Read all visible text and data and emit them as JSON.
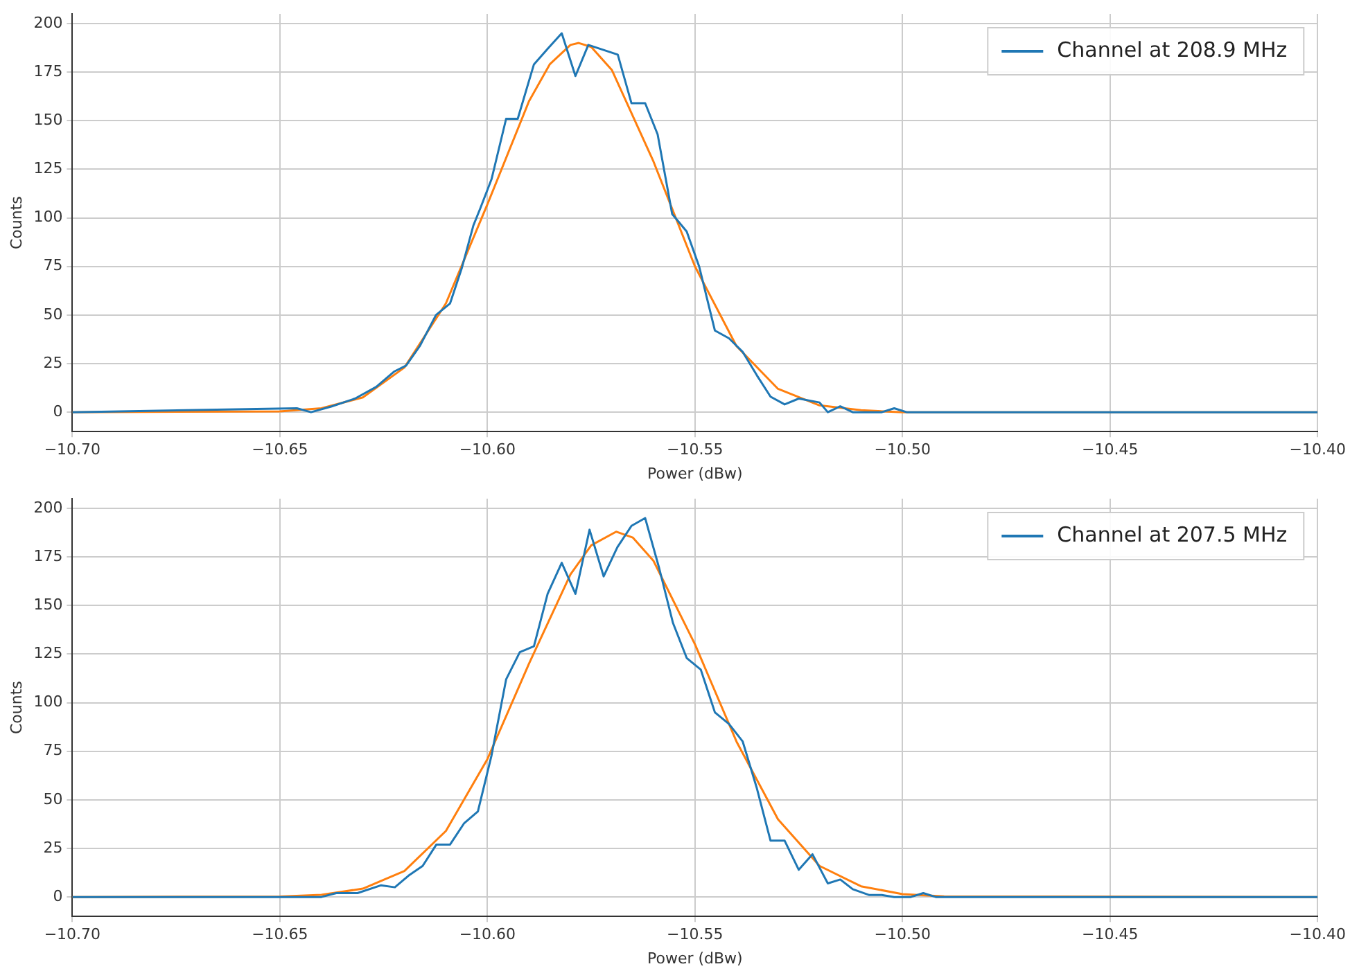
{
  "chart_data": [
    {
      "type": "line",
      "xlabel": "Power (dBw)",
      "ylabel": "Counts",
      "xlim": [
        -10.7,
        -10.4
      ],
      "ylim": [
        -10,
        205
      ],
      "xticks": [
        {
          "value": -10.7,
          "label": "−10.70"
        },
        {
          "value": -10.65,
          "label": "−10.65"
        },
        {
          "value": -10.6,
          "label": "−10.60"
        },
        {
          "value": -10.55,
          "label": "−10.55"
        },
        {
          "value": -10.5,
          "label": "−10.50"
        },
        {
          "value": -10.45,
          "label": "−10.45"
        },
        {
          "value": -10.4,
          "label": "−10.40"
        }
      ],
      "yticks": [
        0,
        25,
        50,
        75,
        100,
        125,
        150,
        175,
        200
      ],
      "grid": true,
      "legend": "top right",
      "marker": "none",
      "line_style": "solid",
      "series": [
        {
          "name": "Channel at 208.9 MHz",
          "color": "#1f77b4",
          "x": [
            -10.7,
            -10.6459,
            -10.6425,
            -10.6375,
            -10.6319,
            -10.6268,
            -10.6224,
            -10.6196,
            -10.6163,
            -10.6124,
            -10.609,
            -10.6062,
            -10.6034,
            -10.6017,
            -10.599,
            -10.5955,
            -10.5927,
            -10.5888,
            -10.5855,
            -10.5821,
            -10.5788,
            -10.5757,
            -10.5686,
            -10.5653,
            -10.562,
            -10.559,
            -10.5555,
            -10.552,
            -10.549,
            -10.5452,
            -10.5418,
            -10.5385,
            -10.5351,
            -10.5318,
            -10.5284,
            -10.525,
            -10.52,
            -10.518,
            -10.515,
            -10.512,
            -10.505,
            -10.502,
            -10.499,
            -10.4
          ],
          "values": [
            0,
            2,
            0,
            3,
            7,
            13,
            21,
            24,
            34,
            50,
            56,
            74,
            96,
            105,
            120,
            151,
            151,
            179,
            187,
            195,
            173,
            189,
            184,
            159,
            159,
            143,
            102,
            93,
            75,
            42,
            38,
            31,
            19,
            8,
            4,
            7,
            5,
            0,
            3,
            0,
            0,
            2,
            0,
            0
          ]
        },
        {
          "color": "#ff7f0e",
          "x": [
            -10.7,
            -10.65,
            -10.64,
            -10.63,
            -10.62,
            -10.61,
            -10.6,
            -10.59,
            -10.585,
            -10.58,
            -10.578,
            -10.575,
            -10.57,
            -10.56,
            -10.55,
            -10.54,
            -10.53,
            -10.52,
            -10.51,
            -10.5,
            -10.4
          ],
          "values": [
            0,
            0.4,
            2,
            7.6,
            23,
            56,
            107,
            160,
            179,
            189,
            190,
            188,
            176,
            129,
            75,
            34,
            12,
            3.5,
            1,
            0,
            0
          ]
        }
      ]
    },
    {
      "type": "line",
      "xlabel": "Power (dBw)",
      "ylabel": "Counts",
      "xlim": [
        -10.7,
        -10.4
      ],
      "ylim": [
        -10,
        205
      ],
      "xticks": [
        {
          "value": -10.7,
          "label": "−10.70"
        },
        {
          "value": -10.65,
          "label": "−10.65"
        },
        {
          "value": -10.6,
          "label": "−10.60"
        },
        {
          "value": -10.55,
          "label": "−10.55"
        },
        {
          "value": -10.5,
          "label": "−10.50"
        },
        {
          "value": -10.45,
          "label": "−10.45"
        },
        {
          "value": -10.4,
          "label": "−10.40"
        }
      ],
      "yticks": [
        0,
        25,
        50,
        75,
        100,
        125,
        150,
        175,
        200
      ],
      "grid": true,
      "legend": "top right",
      "marker": "none",
      "line_style": "solid",
      "series": [
        {
          "name": "Channel at 207.5 MHz",
          "color": "#1f77b4",
          "x": [
            -10.7,
            -10.64,
            -10.6364,
            -10.6313,
            -10.6257,
            -10.6223,
            -10.619,
            -10.6156,
            -10.6123,
            -10.609,
            -10.6056,
            -10.6023,
            -10.599,
            -10.5955,
            -10.5922,
            -10.5888,
            -10.5855,
            -10.5821,
            -10.5788,
            -10.5754,
            -10.572,
            -10.5687,
            -10.5653,
            -10.562,
            -10.5586,
            -10.5553,
            -10.552,
            -10.5486,
            -10.5452,
            -10.5418,
            -10.5385,
            -10.5351,
            -10.5318,
            -10.5284,
            -10.525,
            -10.5217,
            -10.518,
            -10.515,
            -10.512,
            -10.508,
            -10.505,
            -10.502,
            -10.498,
            -10.495,
            -10.492,
            -10.4
          ],
          "values": [
            0,
            0,
            2,
            2,
            6,
            5,
            11,
            16,
            27,
            27,
            38,
            44,
            73,
            112,
            126,
            129,
            156,
            172,
            156,
            189,
            165,
            180,
            191,
            195,
            169,
            141,
            123,
            117,
            95,
            89,
            80,
            56,
            29,
            29,
            14,
            22,
            7,
            9,
            4,
            1,
            1,
            0,
            0,
            2,
            0,
            0
          ]
        },
        {
          "color": "#ff7f0e",
          "x": [
            -10.7,
            -10.65,
            -10.64,
            -10.63,
            -10.62,
            -10.61,
            -10.6,
            -10.59,
            -10.58,
            -10.575,
            -10.569,
            -10.565,
            -10.56,
            -10.55,
            -10.54,
            -10.53,
            -10.52,
            -10.51,
            -10.5,
            -10.49,
            -10.4
          ],
          "values": [
            0,
            0.2,
            1.1,
            4.3,
            13.4,
            34,
            71,
            120,
            166,
            181,
            188,
            185,
            173,
            130,
            80,
            40,
            16,
            5.5,
            1.5,
            0.3,
            0
          ]
        }
      ]
    }
  ]
}
